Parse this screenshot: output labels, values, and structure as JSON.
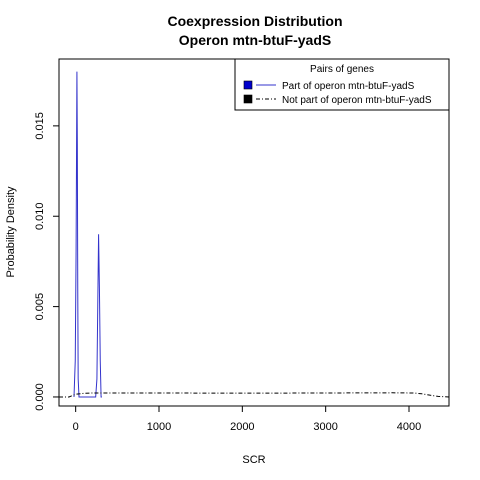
{
  "chart_data": {
    "type": "line",
    "title": "Coexpression Distribution",
    "subtitle": "Operon mtn-btuF-yadS",
    "xlabel": "SCR",
    "ylabel": "Probability Density",
    "xlim": [
      -200,
      4480
    ],
    "ylim": [
      -0.0005,
      0.0187
    ],
    "x_ticks": [
      0,
      1000,
      2000,
      3000,
      4000
    ],
    "x_tick_labels": [
      "0",
      "1000",
      "2000",
      "3000",
      "4000"
    ],
    "y_ticks": [
      0.0,
      0.005,
      0.01,
      0.015
    ],
    "y_tick_labels": [
      "0.000",
      "0.005",
      "0.010",
      "0.015"
    ],
    "grid": false,
    "legend": {
      "title": "Pairs of genes",
      "placement": "top-right",
      "entries": [
        "Part of operon mtn-btuF-yadS",
        "Not part of operon mtn-btuF-yadS"
      ]
    },
    "series": [
      {
        "name": "Part of operon mtn-btuF-yadS",
        "color": "#3333cc",
        "line_style": "solid",
        "x": [
          -20,
          -5,
          5,
          10,
          15,
          20,
          25,
          30,
          40,
          60,
          100,
          150,
          200,
          240,
          255,
          265,
          275,
          285,
          295,
          305,
          315
        ],
        "y": [
          0.0,
          0.002,
          0.008,
          0.013,
          0.018,
          0.014,
          0.006,
          0.001,
          0.0,
          0.0,
          0.0,
          0.0,
          0.0,
          0.0,
          0.001,
          0.005,
          0.009,
          0.006,
          0.002,
          0.0,
          0.0
        ]
      },
      {
        "name": "Not part of operon mtn-btuF-yadS",
        "color": "#000000",
        "line_style": "dashed",
        "x": [
          -200,
          -80,
          0,
          100,
          200,
          500,
          1000,
          2000,
          3000,
          3800,
          4050,
          4150,
          4250,
          4350,
          4480
        ],
        "y": [
          0.0,
          0.0,
          0.00015,
          0.0002,
          0.00022,
          0.00022,
          0.00022,
          0.00021,
          0.00022,
          0.00023,
          0.00022,
          0.00018,
          0.0001,
          3e-05,
          0.0
        ]
      }
    ]
  }
}
